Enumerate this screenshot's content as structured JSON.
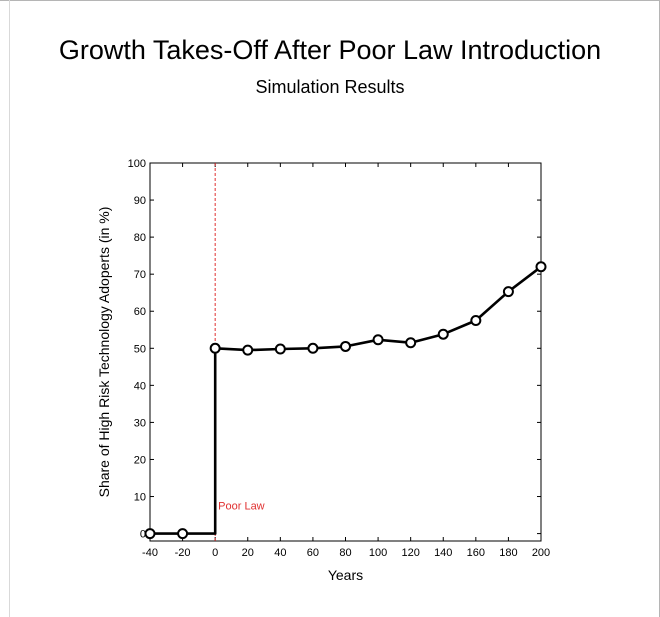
{
  "chart_data": {
    "type": "line",
    "title": "Growth Takes-Off After Poor Law Introduction",
    "subtitle": "Simulation Results",
    "xlabel": "Years",
    "ylabel": "Share of High Risk Technology Adoperts (in %)",
    "xlim": [
      -40,
      200
    ],
    "ylim": [
      -2,
      100
    ],
    "xticks": [
      -40,
      -20,
      0,
      20,
      40,
      60,
      80,
      100,
      120,
      140,
      160,
      180,
      200
    ],
    "yticks": [
      0,
      10,
      20,
      30,
      40,
      50,
      60,
      70,
      80,
      90,
      100
    ],
    "grid": false,
    "series": [
      {
        "x": [
          -40,
          -20,
          0,
          0,
          20,
          40,
          60,
          80,
          100,
          120,
          140,
          160,
          180,
          200
        ],
        "y": [
          0,
          0,
          0,
          50,
          49.5,
          49.8,
          50,
          50.5,
          52.3,
          51.5,
          53.8,
          57.5,
          65.3,
          72
        ],
        "markers_x": [
          -40,
          -20,
          0,
          20,
          40,
          60,
          80,
          100,
          120,
          140,
          160,
          180,
          200
        ],
        "markers_y": [
          0,
          0,
          50,
          49.5,
          49.8,
          50,
          50.5,
          52.3,
          51.5,
          53.8,
          57.5,
          65.3,
          72
        ],
        "color": "#000000"
      }
    ],
    "annotations": [
      {
        "type": "vline",
        "x": 0,
        "color": "#e03030",
        "label": "Poor Law"
      }
    ]
  }
}
